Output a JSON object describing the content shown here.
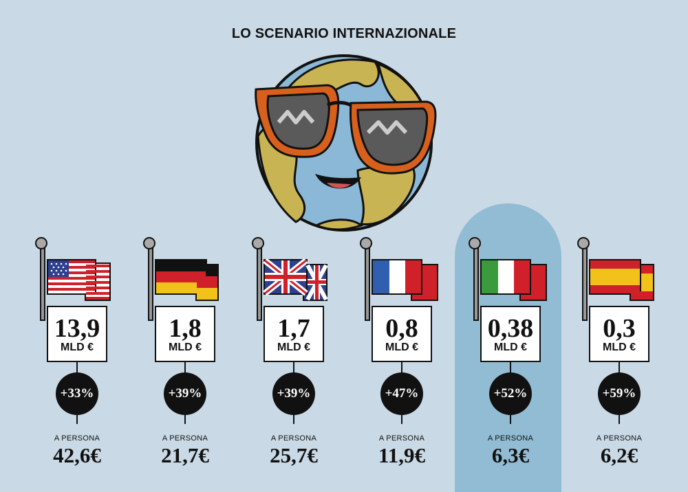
{
  "title": "LO SCENARIO INTERNAZIONALE",
  "countries": [
    {
      "flag": "usa-flag",
      "amount": "13,9",
      "unit": "MLD €",
      "growth": "+33%",
      "persona_label": "A PERSONA",
      "persona_value": "42,6€"
    },
    {
      "flag": "germany-flag",
      "amount": "1,8",
      "unit": "MLD €",
      "growth": "+39%",
      "persona_label": "A PERSONA",
      "persona_value": "21,7€"
    },
    {
      "flag": "uk-flag",
      "amount": "1,7",
      "unit": "MLD €",
      "growth": "+39%",
      "persona_label": "A PERSONA",
      "persona_value": "25,7€"
    },
    {
      "flag": "france-flag",
      "amount": "0,8",
      "unit": "MLD €",
      "growth": "+47%",
      "persona_label": "A PERSONA",
      "persona_value": "11,9€"
    },
    {
      "flag": "italy-flag",
      "amount": "0,38",
      "unit": "MLD €",
      "growth": "+52%",
      "persona_label": "A PERSONA",
      "persona_value": "6,3€",
      "highlighted": true
    },
    {
      "flag": "spain-flag",
      "amount": "0,3",
      "unit": "MLD €",
      "growth": "+59%",
      "persona_label": "A PERSONA",
      "persona_value": "6,2€"
    }
  ],
  "colors": {
    "background": "#c9d9e5",
    "highlight": "#92bcd3",
    "badge": "#111111"
  }
}
